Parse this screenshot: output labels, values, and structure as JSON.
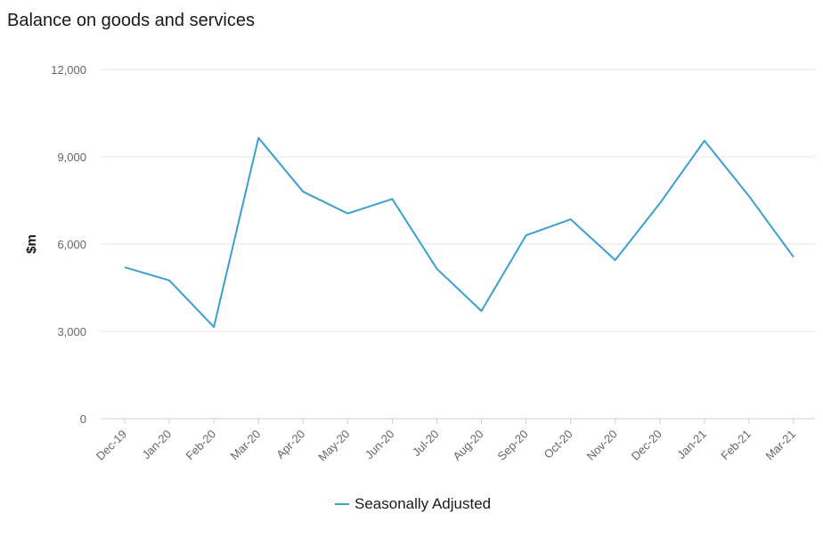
{
  "chart_data": {
    "type": "line",
    "title": "Balance on goods and services",
    "xlabel": "",
    "ylabel": "$m",
    "ylim": [
      0,
      12000
    ],
    "yticks": [
      0,
      3000,
      6000,
      9000,
      12000
    ],
    "ytick_labels": [
      "0",
      "3,000",
      "6,000",
      "9,000",
      "12,000"
    ],
    "grid": true,
    "legend_position": "bottom-center",
    "categories": [
      "Dec-19",
      "Jan-20",
      "Feb-20",
      "Mar-20",
      "Apr-20",
      "May-20",
      "Jun-20",
      "Jul-20",
      "Aug-20",
      "Sep-20",
      "Oct-20",
      "Nov-20",
      "Dec-20",
      "Jan-21",
      "Feb-21",
      "Mar-21"
    ],
    "series": [
      {
        "name": "Seasonally Adjusted",
        "color": "#3b9fcf",
        "values": [
          5200,
          4750,
          3150,
          9650,
          7800,
          7050,
          7550,
          5150,
          3700,
          6300,
          6850,
          5450,
          7400,
          9550,
          7650,
          5550
        ]
      }
    ]
  },
  "colors": {
    "axis": "#c8cde0",
    "grid": "#e6e6e6"
  }
}
